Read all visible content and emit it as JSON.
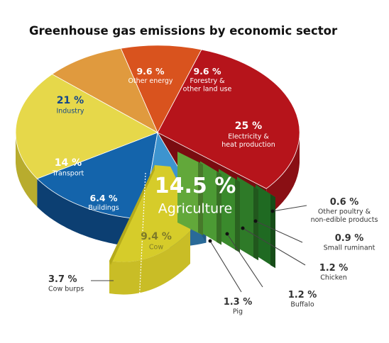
{
  "chart_data": {
    "type": "pie",
    "title": "Greenhouse gas emissions by economic sector",
    "unit": "%",
    "slices": [
      {
        "value": "25 %",
        "label": [
          "Electricity &",
          "heat production"
        ],
        "percent": 25,
        "color": "#b6141b",
        "side": "#8a0f14"
      },
      {
        "value": "9.6 %",
        "label": [
          "Forestry &",
          "other land use"
        ],
        "percent": 9.6,
        "color": "#d9531e",
        "side": "#a8401a"
      },
      {
        "value": "9.6 %",
        "label": [
          "Other energy"
        ],
        "percent": 9.6,
        "color": "#e09a3e",
        "side": "#b07028"
      },
      {
        "value": "21 %",
        "label": [
          "Industry"
        ],
        "percent": 21,
        "color": "#e6d84a",
        "side": "#b8ac2e"
      },
      {
        "value": "14 %",
        "label": [
          "Transport"
        ],
        "percent": 14,
        "color": "#1464ab",
        "side": "#0c3f72"
      },
      {
        "value": "6.4 %",
        "label": [
          "Buildings"
        ],
        "percent": 6.4,
        "color": "#3d94cf",
        "side": "#2a6a98"
      }
    ],
    "agriculture": {
      "value": "14.5 %",
      "label": "Agriculture",
      "percent": 14.5,
      "breakdown": [
        {
          "value": "9.4 %",
          "label": [
            "Cow"
          ],
          "percent": 9.4,
          "color": "#d6cc2a"
        },
        {
          "value": "3.7 %",
          "label": [
            "Cow burps"
          ],
          "percent": 3.7,
          "color": "#c9bd26"
        },
        {
          "value": "1.3 %",
          "label": [
            "Pig"
          ],
          "percent": 1.3,
          "color": "#62a83a"
        },
        {
          "value": "1.2 %",
          "label": [
            "Buffalo"
          ],
          "percent": 1.2,
          "color": "#4c9a34"
        },
        {
          "value": "1.2 %",
          "label": [
            "Chicken"
          ],
          "percent": 1.2,
          "color": "#3a8a2c"
        },
        {
          "value": "0.9 %",
          "label": [
            "Small ruminant"
          ],
          "percent": 0.9,
          "color": "#2e7a28"
        },
        {
          "value": "0.6 %",
          "label": [
            "Other poultry &",
            "non-edible products"
          ],
          "percent": 0.6,
          "color": "#1f6a22"
        }
      ]
    }
  }
}
